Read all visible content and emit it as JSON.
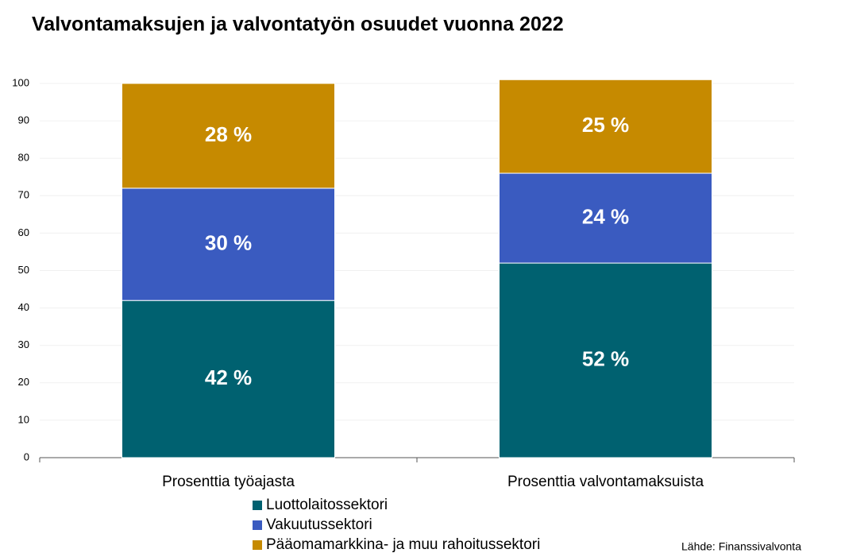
{
  "chart_data": {
    "type": "stacked_bar",
    "title": "Valvontamaksujen ja valvontatyön osuudet vuonna 2022",
    "categories": [
      "Prosenttia työajasta",
      "Prosenttia valvontamaksuista"
    ],
    "series": [
      {
        "name": "Luottolaitossektori",
        "color": "#006170",
        "values": [
          42,
          52
        ],
        "value_labels": [
          "42 %",
          "52 %"
        ]
      },
      {
        "name": "Vakuutussektori",
        "color": "#3a5bc0",
        "values": [
          30,
          24
        ],
        "value_labels": [
          "30 %",
          "24 %"
        ]
      },
      {
        "name": "Pääomamarkkina- ja muu rahoitussektori",
        "color": "#c68a00",
        "values": [
          28,
          25
        ],
        "value_labels": [
          "28 %",
          "25 %"
        ]
      }
    ],
    "ylim": [
      0,
      100
    ],
    "yticks": [
      0,
      10,
      20,
      30,
      40,
      50,
      60,
      70,
      80,
      90,
      100
    ],
    "grid": true,
    "source": "Lähde: Finanssivalvonta"
  }
}
